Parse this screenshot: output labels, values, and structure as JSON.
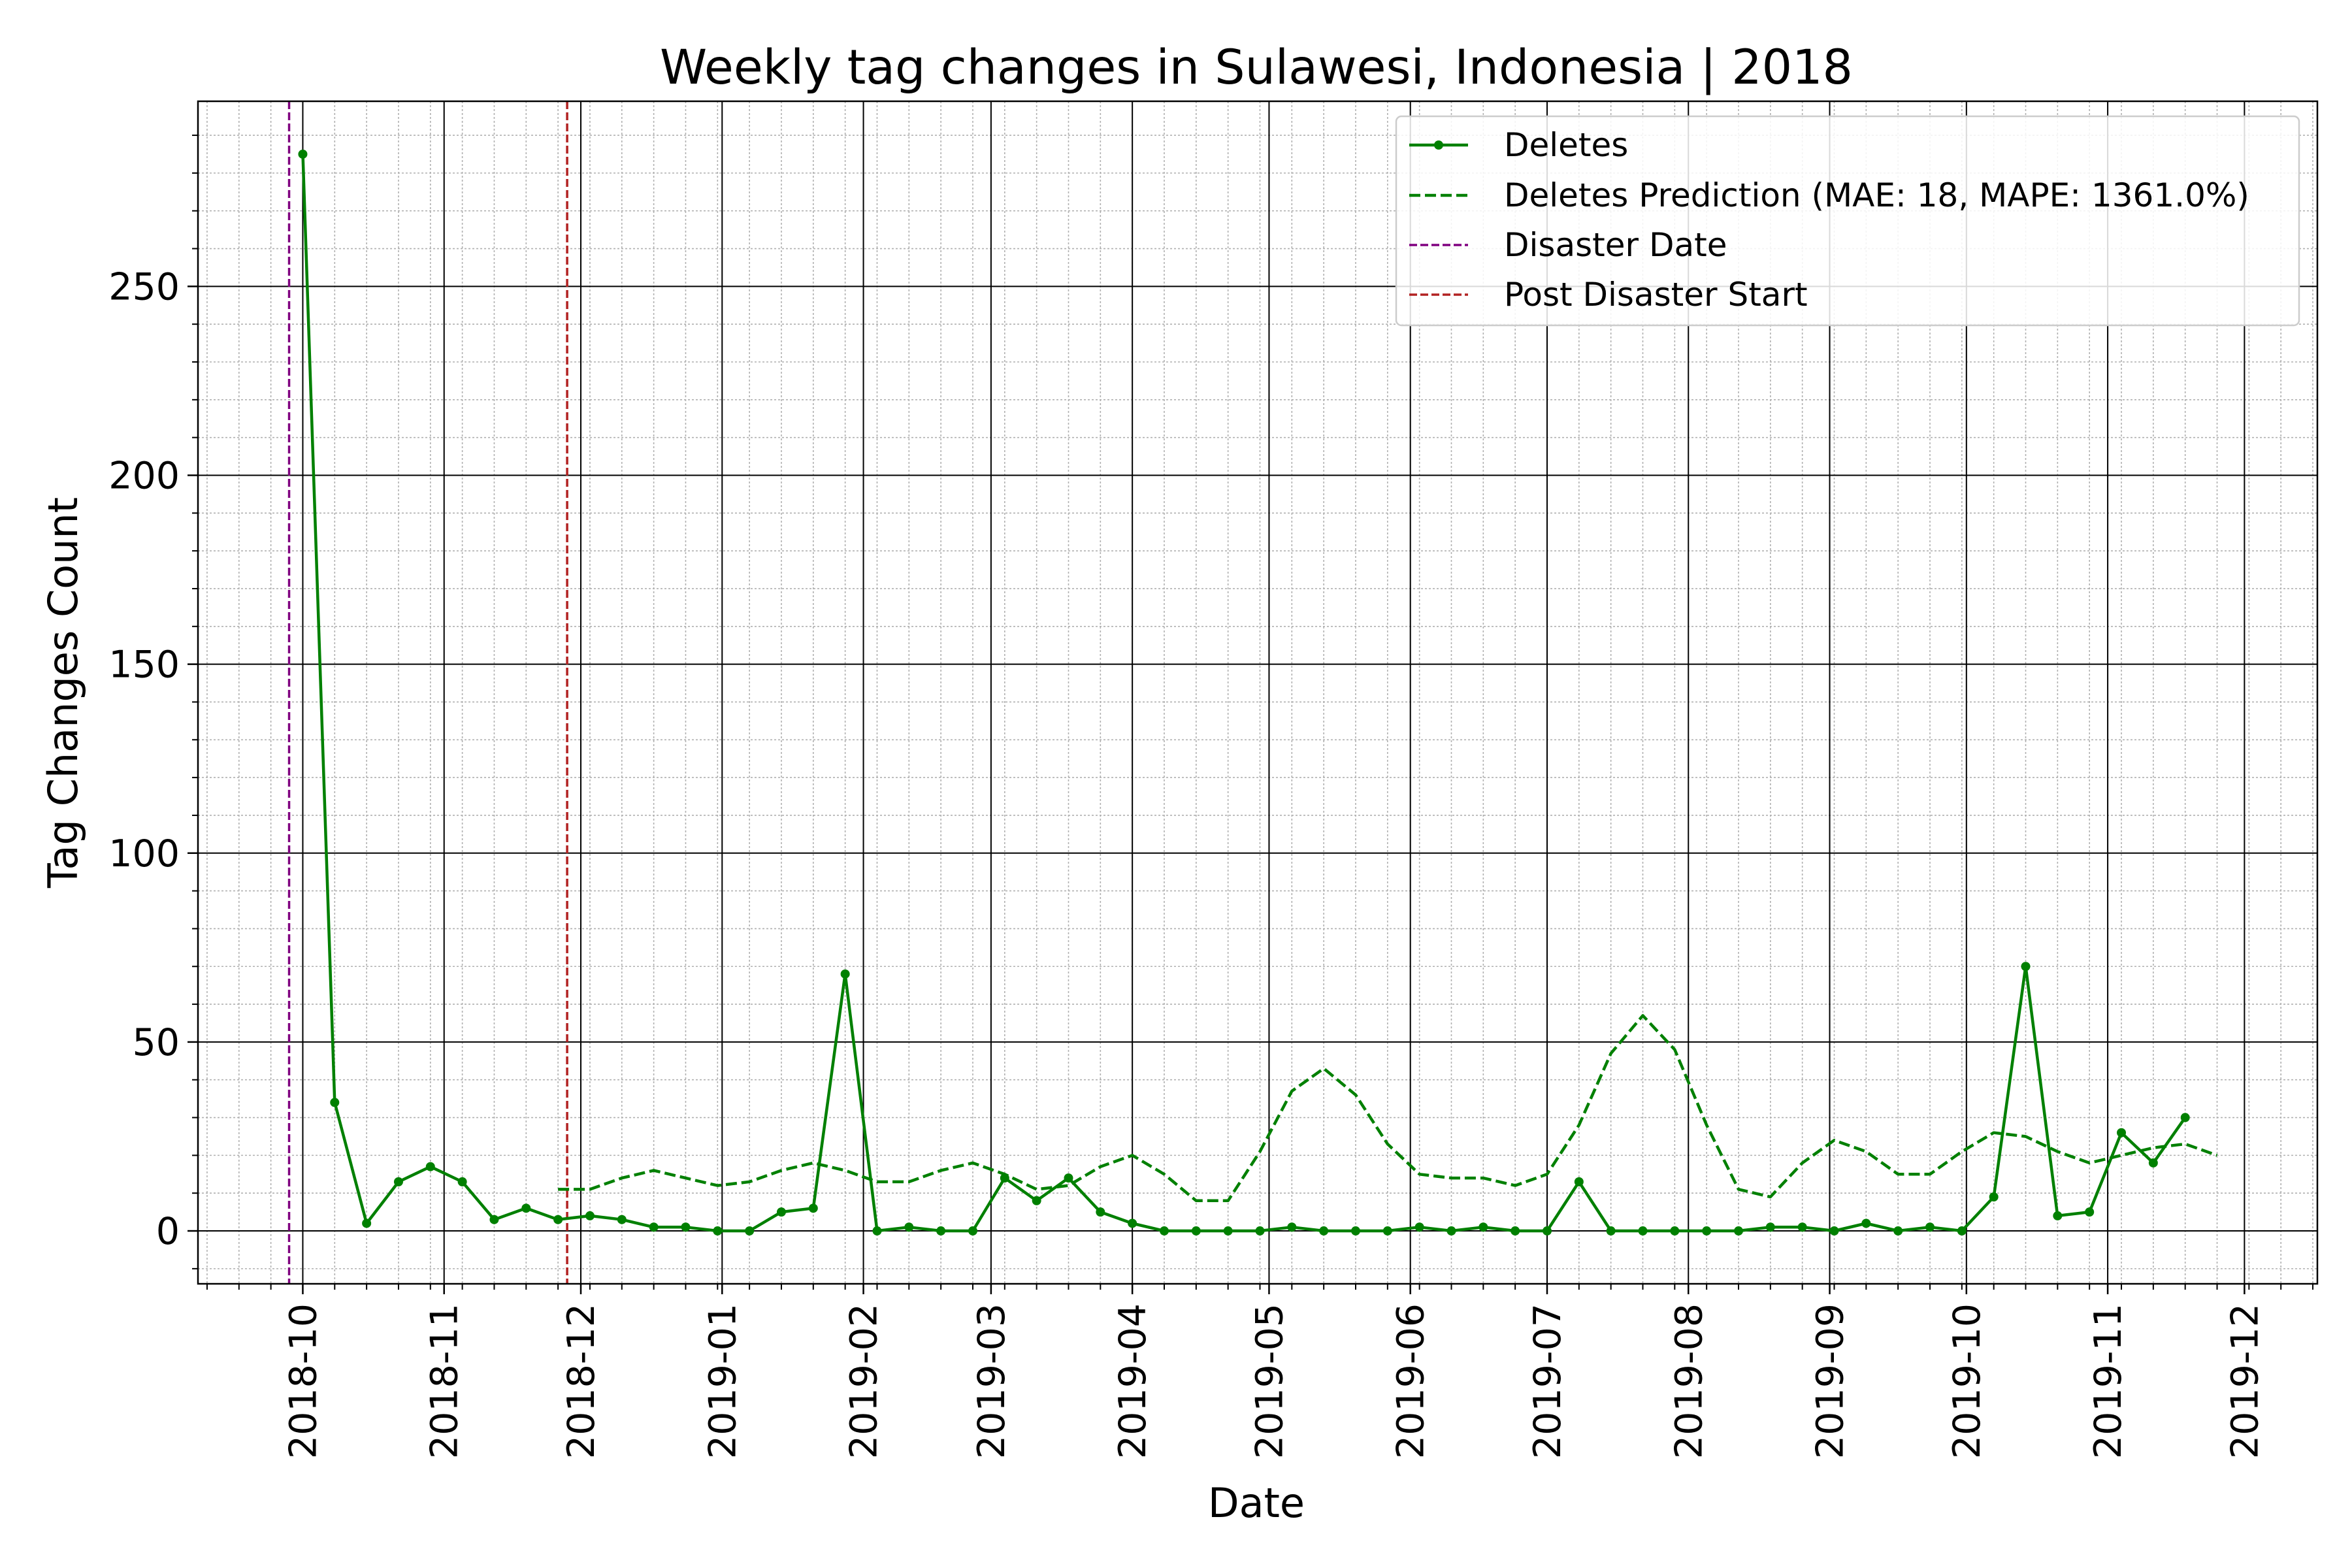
{
  "chart_data": {
    "type": "line",
    "title": "Weekly tag changes in Sulawesi, Indonesia | 2018",
    "xlabel": "Date",
    "ylabel": "Tag Changes Count",
    "x_axis_type": "date",
    "xlim": [
      "2018-09-08",
      "2019-12-17"
    ],
    "ylim": [
      -14,
      299
    ],
    "x_ticks": [
      "2018-10-01",
      "2018-11-01",
      "2018-12-01",
      "2019-01-01",
      "2019-02-01",
      "2019-03-01",
      "2019-04-01",
      "2019-05-01",
      "2019-06-01",
      "2019-07-01",
      "2019-08-01",
      "2019-09-01",
      "2019-10-01",
      "2019-11-01",
      "2019-12-01"
    ],
    "x_tick_labels": [
      "2018-10",
      "2018-11",
      "2018-12",
      "2019-01",
      "2019-02",
      "2019-03",
      "2019-04",
      "2019-05",
      "2019-06",
      "2019-07",
      "2019-08",
      "2019-09",
      "2019-10",
      "2019-11",
      "2019-12"
    ],
    "y_ticks": [
      0,
      50,
      100,
      150,
      200,
      250
    ],
    "grid": true,
    "minor_grid": true,
    "legend_position": "top-right",
    "series": [
      {
        "name": "Deletes",
        "style": "solid-with-markers",
        "color": "#008000",
        "x": [
          "2018-10-01",
          "2018-10-08",
          "2018-10-15",
          "2018-10-22",
          "2018-10-29",
          "2018-11-05",
          "2018-11-12",
          "2018-11-19",
          "2018-11-26",
          "2018-12-03",
          "2018-12-10",
          "2018-12-17",
          "2018-12-24",
          "2018-12-31",
          "2019-01-07",
          "2019-01-14",
          "2019-01-21",
          "2019-01-28",
          "2019-02-04",
          "2019-02-11",
          "2019-02-18",
          "2019-02-25",
          "2019-03-04",
          "2019-03-11",
          "2019-03-18",
          "2019-03-25",
          "2019-04-01",
          "2019-04-08",
          "2019-04-15",
          "2019-04-22",
          "2019-04-29",
          "2019-05-06",
          "2019-05-13",
          "2019-05-20",
          "2019-05-27",
          "2019-06-03",
          "2019-06-10",
          "2019-06-17",
          "2019-06-24",
          "2019-07-01",
          "2019-07-08",
          "2019-07-15",
          "2019-07-22",
          "2019-07-29",
          "2019-08-05",
          "2019-08-12",
          "2019-08-19",
          "2019-08-26",
          "2019-09-02",
          "2019-09-09",
          "2019-09-16",
          "2019-09-23",
          "2019-09-30",
          "2019-10-07",
          "2019-10-14",
          "2019-10-21",
          "2019-10-28",
          "2019-11-04",
          "2019-11-11",
          "2019-11-18"
        ],
        "values": [
          285,
          34,
          2,
          13,
          17,
          13,
          3,
          6,
          3,
          4,
          3,
          1,
          1,
          0,
          0,
          5,
          6,
          68,
          0,
          1,
          0,
          0,
          14,
          8,
          14,
          5,
          2,
          0,
          0,
          0,
          0,
          1,
          0,
          0,
          0,
          1,
          0,
          1,
          0,
          0,
          13,
          0,
          0,
          0,
          0,
          0,
          1,
          1,
          0,
          2,
          0,
          1,
          0,
          9,
          70,
          4,
          5,
          26,
          18,
          30
        ]
      },
      {
        "name": "Deletes Prediction (MAE: 18, MAPE: 1361.0%)",
        "style": "dashed",
        "color": "#008000",
        "x": [
          "2018-11-26",
          "2018-12-03",
          "2018-12-10",
          "2018-12-17",
          "2018-12-24",
          "2018-12-31",
          "2019-01-07",
          "2019-01-14",
          "2019-01-21",
          "2019-01-28",
          "2019-02-04",
          "2019-02-11",
          "2019-02-18",
          "2019-02-25",
          "2019-03-04",
          "2019-03-11",
          "2019-03-18",
          "2019-03-25",
          "2019-04-01",
          "2019-04-08",
          "2019-04-15",
          "2019-04-22",
          "2019-04-29",
          "2019-05-06",
          "2019-05-13",
          "2019-05-20",
          "2019-05-27",
          "2019-06-03",
          "2019-06-10",
          "2019-06-17",
          "2019-06-24",
          "2019-07-01",
          "2019-07-08",
          "2019-07-15",
          "2019-07-22",
          "2019-07-29",
          "2019-08-05",
          "2019-08-12",
          "2019-08-19",
          "2019-08-26",
          "2019-09-02",
          "2019-09-09",
          "2019-09-16",
          "2019-09-23",
          "2019-09-30",
          "2019-10-07",
          "2019-10-14",
          "2019-10-21",
          "2019-10-28",
          "2019-11-04",
          "2019-11-11",
          "2019-11-18",
          "2019-11-25"
        ],
        "values": [
          11,
          11,
          14,
          16,
          14,
          12,
          13,
          16,
          18,
          16,
          13,
          13,
          16,
          18,
          15,
          11,
          12,
          17,
          20,
          15,
          8,
          8,
          21,
          37,
          43,
          36,
          23,
          15,
          14,
          14,
          12,
          15,
          28,
          47,
          57,
          48,
          28,
          11,
          9,
          18,
          24,
          21,
          15,
          15,
          21,
          26,
          25,
          21,
          18,
          20,
          22,
          23,
          20
        ]
      },
      {
        "name": "Disaster Date",
        "type": "vline",
        "style": "dashed",
        "color": "#800080",
        "x": "2018-09-28"
      },
      {
        "name": "Post Disaster Start",
        "type": "vline",
        "style": "dashed",
        "color": "#b22222",
        "x": "2018-11-28"
      }
    ]
  }
}
